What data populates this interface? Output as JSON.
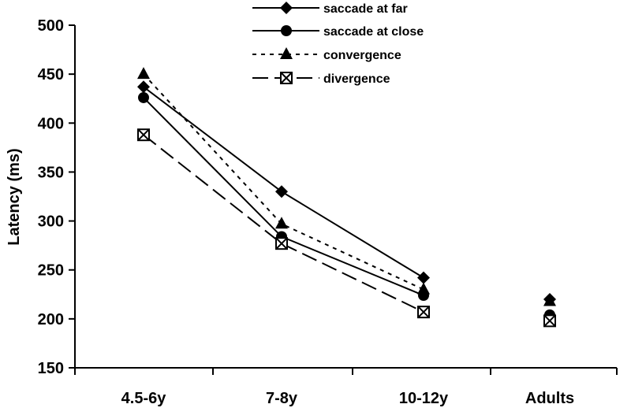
{
  "chart_data": {
    "type": "line",
    "ylabel": "Latency (ms)",
    "xlabel": "",
    "ylim": [
      150,
      500
    ],
    "yticks": [
      150,
      200,
      250,
      300,
      350,
      400,
      450,
      500
    ],
    "categories": [
      "4.5-6y",
      "7-8y",
      "10-12y",
      "Adults"
    ],
    "legend_position": "top-right",
    "series": [
      {
        "name": "saccade at far",
        "marker": "diamond",
        "line": "solid",
        "values": [
          437,
          330,
          242,
          220
        ]
      },
      {
        "name": "saccade at close",
        "marker": "circle",
        "line": "solid",
        "values": [
          426,
          284,
          224,
          204
        ]
      },
      {
        "name": "convergence",
        "marker": "triangle",
        "line": "dotted",
        "values": [
          450,
          297,
          230,
          218
        ]
      },
      {
        "name": "divergence",
        "marker": "cross-box",
        "line": "dashed",
        "values": [
          388,
          277,
          207,
          198
        ]
      }
    ]
  }
}
